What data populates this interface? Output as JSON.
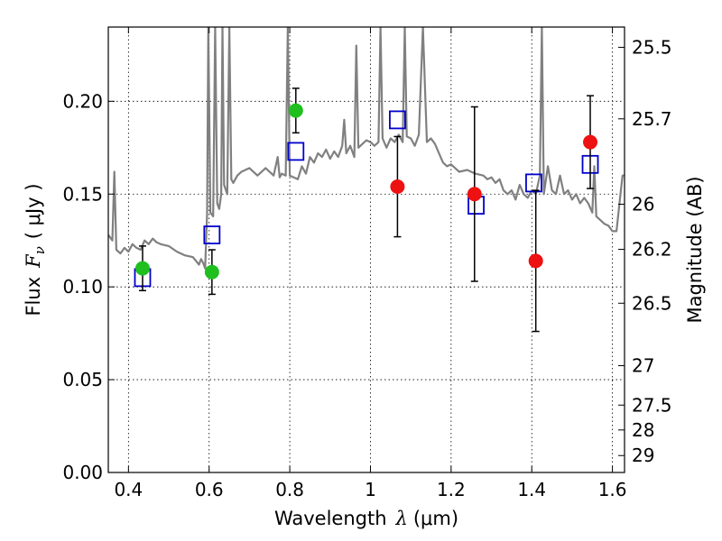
{
  "chart_data": {
    "type": "scatter",
    "xlabel": "Wavelength",
    "xlabel_symbol": "λ",
    "xlabel_unit": "(μm)",
    "ylabel": "Flux",
    "ylabel_symbol": "F",
    "ylabel_subscript": "ν",
    "ylabel_unit": "( μJy )",
    "y2label": "Magnitude (AB)",
    "xlim": [
      0.35,
      1.63
    ],
    "ylim": [
      0.0,
      0.24
    ],
    "grid": true,
    "x_ticks": [
      0.4,
      0.6,
      0.8,
      1.0,
      1.2,
      1.4,
      1.6
    ],
    "x_tick_labels": [
      "0.4",
      "0.6",
      "0.8",
      "1",
      "1.2",
      "1.4",
      "1.6"
    ],
    "y_ticks": [
      0.0,
      0.05,
      0.1,
      0.15,
      0.2
    ],
    "y_tick_labels": [
      "0.00",
      "0.05",
      "0.10",
      "0.15",
      "0.20"
    ],
    "y2_ticks": [
      25.5,
      25.7,
      26,
      26.2,
      26.5,
      27,
      27.5,
      28,
      29
    ],
    "y2_tick_labels": [
      "25.5",
      "25.7",
      "26",
      "26.2",
      "26.5",
      "27",
      "27.5",
      "28",
      "29"
    ],
    "colors": {
      "model": "#808080",
      "green": "#1fbf1f",
      "red": "#ee1111",
      "square": "#0000cc",
      "error": "#000000"
    },
    "model_spectrum": [
      [
        0.35,
        0.128
      ],
      [
        0.36,
        0.125
      ],
      [
        0.365,
        0.162
      ],
      [
        0.37,
        0.12
      ],
      [
        0.38,
        0.118
      ],
      [
        0.39,
        0.121
      ],
      [
        0.4,
        0.119
      ],
      [
        0.41,
        0.123
      ],
      [
        0.42,
        0.121
      ],
      [
        0.43,
        0.12
      ],
      [
        0.44,
        0.125
      ],
      [
        0.45,
        0.123
      ],
      [
        0.46,
        0.126
      ],
      [
        0.47,
        0.124
      ],
      [
        0.48,
        0.123
      ],
      [
        0.5,
        0.122
      ],
      [
        0.52,
        0.119
      ],
      [
        0.54,
        0.117
      ],
      [
        0.56,
        0.116
      ],
      [
        0.575,
        0.112
      ],
      [
        0.58,
        0.115
      ],
      [
        0.585,
        0.113
      ],
      [
        0.59,
        0.11
      ],
      [
        0.595,
        0.14
      ],
      [
        0.598,
        0.24
      ],
      [
        0.603,
        0.14
      ],
      [
        0.61,
        0.138
      ],
      [
        0.615,
        0.24
      ],
      [
        0.62,
        0.145
      ],
      [
        0.625,
        0.142
      ],
      [
        0.63,
        0.15
      ],
      [
        0.633,
        0.24
      ],
      [
        0.637,
        0.155
      ],
      [
        0.645,
        0.15
      ],
      [
        0.65,
        0.24
      ],
      [
        0.655,
        0.158
      ],
      [
        0.66,
        0.156
      ],
      [
        0.67,
        0.16
      ],
      [
        0.68,
        0.162
      ],
      [
        0.7,
        0.164
      ],
      [
        0.72,
        0.16
      ],
      [
        0.74,
        0.164
      ],
      [
        0.76,
        0.16
      ],
      [
        0.77,
        0.17
      ],
      [
        0.775,
        0.159
      ],
      [
        0.78,
        0.161
      ],
      [
        0.79,
        0.16
      ],
      [
        0.795,
        0.24
      ],
      [
        0.8,
        0.16
      ],
      [
        0.82,
        0.158
      ],
      [
        0.83,
        0.165
      ],
      [
        0.84,
        0.161
      ],
      [
        0.85,
        0.17
      ],
      [
        0.86,
        0.167
      ],
      [
        0.87,
        0.172
      ],
      [
        0.88,
        0.17
      ],
      [
        0.89,
        0.174
      ],
      [
        0.9,
        0.169
      ],
      [
        0.91,
        0.173
      ],
      [
        0.92,
        0.17
      ],
      [
        0.93,
        0.176
      ],
      [
        0.935,
        0.19
      ],
      [
        0.94,
        0.172
      ],
      [
        0.95,
        0.176
      ],
      [
        0.96,
        0.17
      ],
      [
        0.965,
        0.23
      ],
      [
        0.97,
        0.175
      ],
      [
        0.98,
        0.177
      ],
      [
        0.99,
        0.179
      ],
      [
        1.0,
        0.178
      ],
      [
        1.01,
        0.176
      ],
      [
        1.02,
        0.178
      ],
      [
        1.025,
        0.24
      ],
      [
        1.03,
        0.18
      ],
      [
        1.04,
        0.175
      ],
      [
        1.05,
        0.18
      ],
      [
        1.06,
        0.178
      ],
      [
        1.07,
        0.182
      ],
      [
        1.08,
        0.178
      ],
      [
        1.085,
        0.24
      ],
      [
        1.09,
        0.181
      ],
      [
        1.1,
        0.18
      ],
      [
        1.11,
        0.176
      ],
      [
        1.12,
        0.182
      ],
      [
        1.13,
        0.24
      ],
      [
        1.14,
        0.178
      ],
      [
        1.15,
        0.18
      ],
      [
        1.16,
        0.177
      ],
      [
        1.17,
        0.172
      ],
      [
        1.18,
        0.167
      ],
      [
        1.19,
        0.165
      ],
      [
        1.2,
        0.166
      ],
      [
        1.21,
        0.164
      ],
      [
        1.22,
        0.162
      ],
      [
        1.24,
        0.163
      ],
      [
        1.26,
        0.161
      ],
      [
        1.28,
        0.16
      ],
      [
        1.29,
        0.158
      ],
      [
        1.3,
        0.159
      ],
      [
        1.31,
        0.156
      ],
      [
        1.32,
        0.158
      ],
      [
        1.33,
        0.152
      ],
      [
        1.34,
        0.15
      ],
      [
        1.35,
        0.152
      ],
      [
        1.36,
        0.147
      ],
      [
        1.37,
        0.155
      ],
      [
        1.38,
        0.15
      ],
      [
        1.39,
        0.148
      ],
      [
        1.4,
        0.152
      ],
      [
        1.41,
        0.15
      ],
      [
        1.42,
        0.16
      ],
      [
        1.425,
        0.24
      ],
      [
        1.43,
        0.15
      ],
      [
        1.44,
        0.165
      ],
      [
        1.45,
        0.152
      ],
      [
        1.46,
        0.15
      ],
      [
        1.47,
        0.16
      ],
      [
        1.48,
        0.15
      ],
      [
        1.49,
        0.152
      ],
      [
        1.5,
        0.147
      ],
      [
        1.51,
        0.15
      ],
      [
        1.52,
        0.145
      ],
      [
        1.53,
        0.148
      ],
      [
        1.54,
        0.145
      ],
      [
        1.55,
        0.14
      ],
      [
        1.555,
        0.165
      ],
      [
        1.56,
        0.138
      ],
      [
        1.57,
        0.136
      ],
      [
        1.58,
        0.134
      ],
      [
        1.59,
        0.133
      ],
      [
        1.6,
        0.13
      ],
      [
        1.61,
        0.13
      ],
      [
        1.62,
        0.15
      ],
      [
        1.625,
        0.16
      ],
      [
        1.63,
        0.16
      ]
    ],
    "green_points": [
      {
        "x": 0.435,
        "y": 0.11,
        "err": 0.012
      },
      {
        "x": 0.607,
        "y": 0.108,
        "err": 0.012
      },
      {
        "x": 0.815,
        "y": 0.195,
        "err": 0.012
      }
    ],
    "red_points": [
      {
        "x": 1.067,
        "y": 0.154,
        "err": 0.027
      },
      {
        "x": 1.258,
        "y": 0.15,
        "err": 0.047
      },
      {
        "x": 1.41,
        "y": 0.114,
        "err": 0.038
      },
      {
        "x": 1.545,
        "y": 0.178,
        "err": 0.025
      }
    ],
    "model_squares": [
      {
        "x": 0.435,
        "y": 0.105
      },
      {
        "x": 0.607,
        "y": 0.128
      },
      {
        "x": 0.815,
        "y": 0.173
      },
      {
        "x": 1.067,
        "y": 0.19
      },
      {
        "x": 1.262,
        "y": 0.144
      },
      {
        "x": 1.405,
        "y": 0.156
      },
      {
        "x": 1.545,
        "y": 0.166
      }
    ]
  }
}
